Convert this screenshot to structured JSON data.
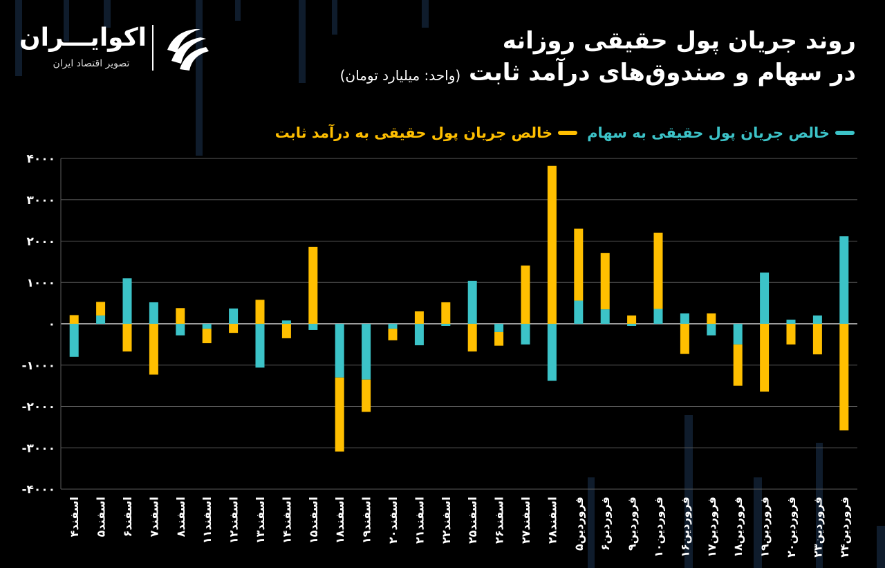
{
  "title": {
    "line1": "روند جریان پول حقیقی روزانه",
    "line2": "در سهام و صندوق‌های درآمد ثابت",
    "unit": "(واحد: میلیارد تومان)"
  },
  "logo": {
    "name": "اکوایـــران",
    "tagline": "تصویر اقتصاد ایران",
    "icon": "ecoiran-logo-icon"
  },
  "colors": {
    "background": "#000000",
    "stocks": "#3cc3c8",
    "fixed_income": "#ffbf00",
    "grid": "#5a5a5a",
    "axis_text": "#ffffff"
  },
  "chart_data": {
    "type": "bar",
    "stacked": true,
    "title": "روند جریان پول حقیقی روزانه در سهام و صندوق‌های درآمد ثابت",
    "ylim": [
      -4000,
      4000
    ],
    "yticks": [
      -4000,
      -3000,
      -2000,
      -1000,
      0,
      1000,
      2000,
      3000,
      4000
    ],
    "ytick_labels": [
      "-۴۰۰۰",
      "-۳۰۰۰",
      "-۲۰۰۰",
      "-۱۰۰۰",
      "۰",
      "۱۰۰۰",
      "۲۰۰۰",
      "۳۰۰۰",
      "۴۰۰۰"
    ],
    "grid": true,
    "legend_position": "top-right",
    "categories": [
      "اسفند۴",
      "اسفند۵",
      "اسفند۶",
      "اسفند۷",
      "اسفند۸",
      "اسفند۱۱",
      "اسفند۱۲",
      "اسفند۱۳",
      "اسفند۱۴",
      "اسفند۱۵",
      "اسفند۱۸",
      "اسفند۱۹",
      "اسفند۲۰",
      "اسفند۲۱",
      "اسفند۲۲",
      "اسفند۲۵",
      "اسفند۲۶",
      "اسفند۲۷",
      "اسفند۲۸",
      "فروردین۵",
      "فروردین۶",
      "فروردین۹",
      "فروردین۱۰",
      "فروردین۱۶",
      "فروردین۱۷",
      "فروردین۱۸",
      "فروردین۱۹",
      "فروردین۲۰",
      "فروردین۲۳",
      "فروردین۲۴"
    ],
    "series": [
      {
        "name": "خالص جریان پول حقیقی به سهام",
        "color": "#3cc3c8",
        "values": [
          -800,
          200,
          1100,
          520,
          -280,
          -120,
          370,
          -1060,
          80,
          -150,
          -1300,
          -1350,
          -120,
          -520,
          -50,
          1040,
          -200,
          -500,
          -1380,
          560,
          350,
          -50,
          360,
          250,
          -280,
          -500,
          1240,
          100,
          200,
          2120
        ]
      },
      {
        "name": "خالص جریان پول حقیقی به درآمد ثابت",
        "color": "#ffbf00",
        "values": [
          210,
          330,
          -670,
          -1230,
          380,
          -350,
          -220,
          580,
          -350,
          1860,
          -1790,
          -780,
          -280,
          300,
          520,
          -670,
          -330,
          1410,
          3820,
          1740,
          1360,
          200,
          1840,
          -730,
          250,
          -1000,
          -1640,
          -500,
          -740,
          -2580
        ]
      }
    ]
  }
}
